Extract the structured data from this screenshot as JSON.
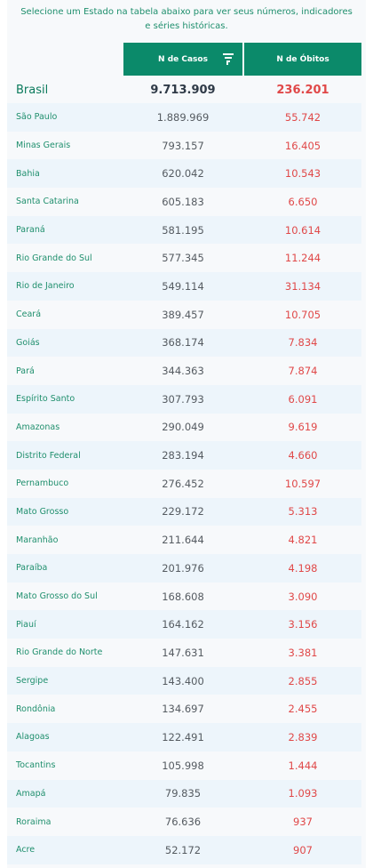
{
  "intro": {
    "line1": "Selecione um Estado na tabela abaixo para ver seus números, indicadores",
    "line2": "e séries históricas."
  },
  "table": {
    "columns": {
      "cases": "N de Casos",
      "deaths": "N de Óbitos"
    },
    "sort_icon": "filter-sort-icon",
    "total": {
      "name": "Brasil",
      "cases": "9.713.909",
      "deaths": "236.201"
    },
    "rows": [
      {
        "name": "São Paulo",
        "cases": "1.889.969",
        "deaths": "55.742"
      },
      {
        "name": "Minas Gerais",
        "cases": "793.157",
        "deaths": "16.405"
      },
      {
        "name": "Bahia",
        "cases": "620.042",
        "deaths": "10.543"
      },
      {
        "name": "Santa Catarina",
        "cases": "605.183",
        "deaths": "6.650"
      },
      {
        "name": "Paraná",
        "cases": "581.195",
        "deaths": "10.614"
      },
      {
        "name": "Rio Grande do Sul",
        "cases": "577.345",
        "deaths": "11.244"
      },
      {
        "name": "Rio de Janeiro",
        "cases": "549.114",
        "deaths": "31.134"
      },
      {
        "name": "Ceará",
        "cases": "389.457",
        "deaths": "10.705"
      },
      {
        "name": "Goiás",
        "cases": "368.174",
        "deaths": "7.834"
      },
      {
        "name": "Pará",
        "cases": "344.363",
        "deaths": "7.874"
      },
      {
        "name": "Espírito Santo",
        "cases": "307.793",
        "deaths": "6.091"
      },
      {
        "name": "Amazonas",
        "cases": "290.049",
        "deaths": "9.619"
      },
      {
        "name": "Distrito Federal",
        "cases": "283.194",
        "deaths": "4.660"
      },
      {
        "name": "Pernambuco",
        "cases": "276.452",
        "deaths": "10.597"
      },
      {
        "name": "Mato Grosso",
        "cases": "229.172",
        "deaths": "5.313"
      },
      {
        "name": "Maranhão",
        "cases": "211.644",
        "deaths": "4.821"
      },
      {
        "name": "Paraíba",
        "cases": "201.976",
        "deaths": "4.198"
      },
      {
        "name": "Mato Grosso do Sul",
        "cases": "168.608",
        "deaths": "3.090"
      },
      {
        "name": "Piauí",
        "cases": "164.162",
        "deaths": "3.156"
      },
      {
        "name": "Rio Grande do Norte",
        "cases": "147.631",
        "deaths": "3.381"
      },
      {
        "name": "Sergipe",
        "cases": "143.400",
        "deaths": "2.855"
      },
      {
        "name": "Rondônia",
        "cases": "134.697",
        "deaths": "2.455"
      },
      {
        "name": "Alagoas",
        "cases": "122.491",
        "deaths": "2.839"
      },
      {
        "name": "Tocantins",
        "cases": "105.998",
        "deaths": "1.444"
      },
      {
        "name": "Amapá",
        "cases": "79.835",
        "deaths": "1.093"
      },
      {
        "name": "Roraima",
        "cases": "76.636",
        "deaths": "937"
      },
      {
        "name": "Acre",
        "cases": "52.172",
        "deaths": "907"
      }
    ]
  },
  "colors": {
    "header_bg": "#0b8a6a",
    "state_name": "#1f8f6d",
    "deaths_text": "#e04848",
    "row_shade": "#edf5fb"
  }
}
